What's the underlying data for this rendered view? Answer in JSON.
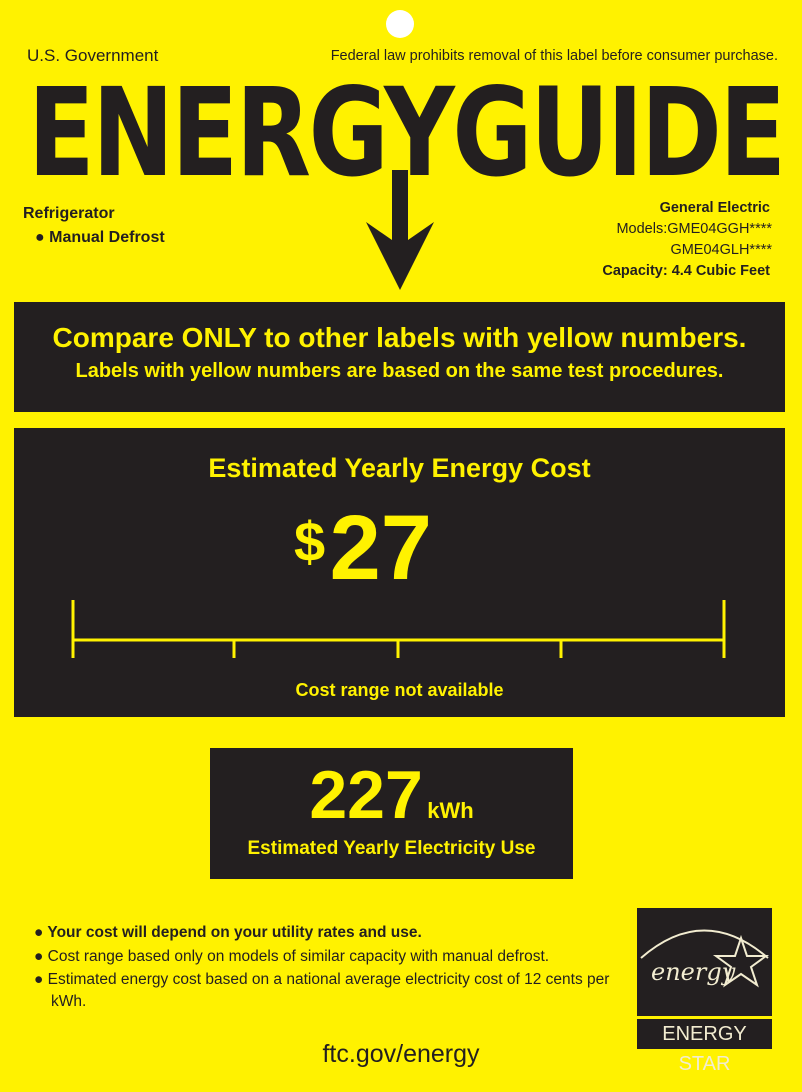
{
  "header": {
    "left": "U.S. Government",
    "right": "Federal law prohibits removal of this label before consumer purchase.",
    "title": "ENERGYGUIDE"
  },
  "product": {
    "type": "Refrigerator",
    "feature": "Manual Defrost",
    "brand": "General  Electric",
    "models_label": "Models:",
    "model1": "GME04GGH****",
    "model2": "GME04GLH****",
    "capacity": "Capacity:  4.4 Cubic  Feet"
  },
  "compare": {
    "line1": "Compare ONLY to other labels with yellow numbers.",
    "line2": "Labels with yellow numbers are based on the same test procedures."
  },
  "cost": {
    "title": "Estimated Yearly Energy Cost",
    "currency": "$",
    "value": "27",
    "range_note": "Cost range not available"
  },
  "electricity": {
    "value": "227",
    "unit": "kWh",
    "label": "Estimated Yearly Electricity Use"
  },
  "notes": [
    "Your cost will depend on your utility rates and use.",
    "Cost range based only on models of similar capacity with manual defrost.",
    "Estimated energy cost based on a national average electricity cost of 12 cents per kWh."
  ],
  "logo": {
    "script": "energy",
    "caption": "ENERGY STAR"
  },
  "footer": {
    "url": "ftc.gov/energy"
  },
  "colors": {
    "label_yellow": "#fff200",
    "box_dark": "#231f20"
  }
}
